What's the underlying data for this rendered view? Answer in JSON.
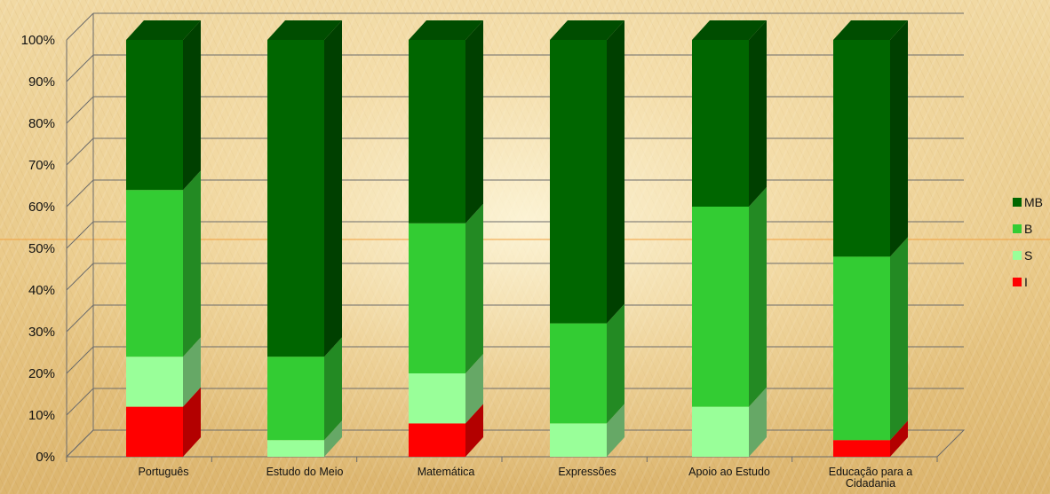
{
  "chart_data": {
    "type": "bar",
    "stacked": true,
    "percent": true,
    "three_d": true,
    "title": "",
    "xlabel": "",
    "ylabel": "",
    "ylim": [
      0,
      100
    ],
    "yticks": [
      "0%",
      "10%",
      "20%",
      "30%",
      "40%",
      "50%",
      "60%",
      "70%",
      "80%",
      "90%",
      "100%"
    ],
    "grid": true,
    "legend_position": "right",
    "categories": [
      "Português",
      "Estudo do Meio",
      "Matemática",
      "Expressões",
      "Apoio ao Estudo",
      "Educação para a Cidadania"
    ],
    "category_lines": [
      [
        "Português"
      ],
      [
        "Estudo do Meio"
      ],
      [
        "Matemática"
      ],
      [
        "Expressões"
      ],
      [
        "Apoio ao Estudo"
      ],
      [
        "Educação para a",
        "Cidadania"
      ]
    ],
    "series": [
      {
        "name": "I",
        "color": "#ff0000",
        "side": "#b30000",
        "top": "#cc0000",
        "values": [
          12,
          0,
          8,
          0,
          0,
          4
        ]
      },
      {
        "name": "S",
        "color": "#99ff99",
        "side": "#66a866",
        "top": "#80d680",
        "values": [
          12,
          4,
          12,
          8,
          12,
          0
        ]
      },
      {
        "name": "B",
        "color": "#33cc33",
        "side": "#238a23",
        "top": "#2aad2a",
        "values": [
          40,
          20,
          36,
          24,
          48,
          44
        ]
      },
      {
        "name": "MB",
        "color": "#006600",
        "side": "#004000",
        "top": "#004d00",
        "values": [
          36,
          76,
          44,
          68,
          40,
          52
        ]
      }
    ]
  }
}
